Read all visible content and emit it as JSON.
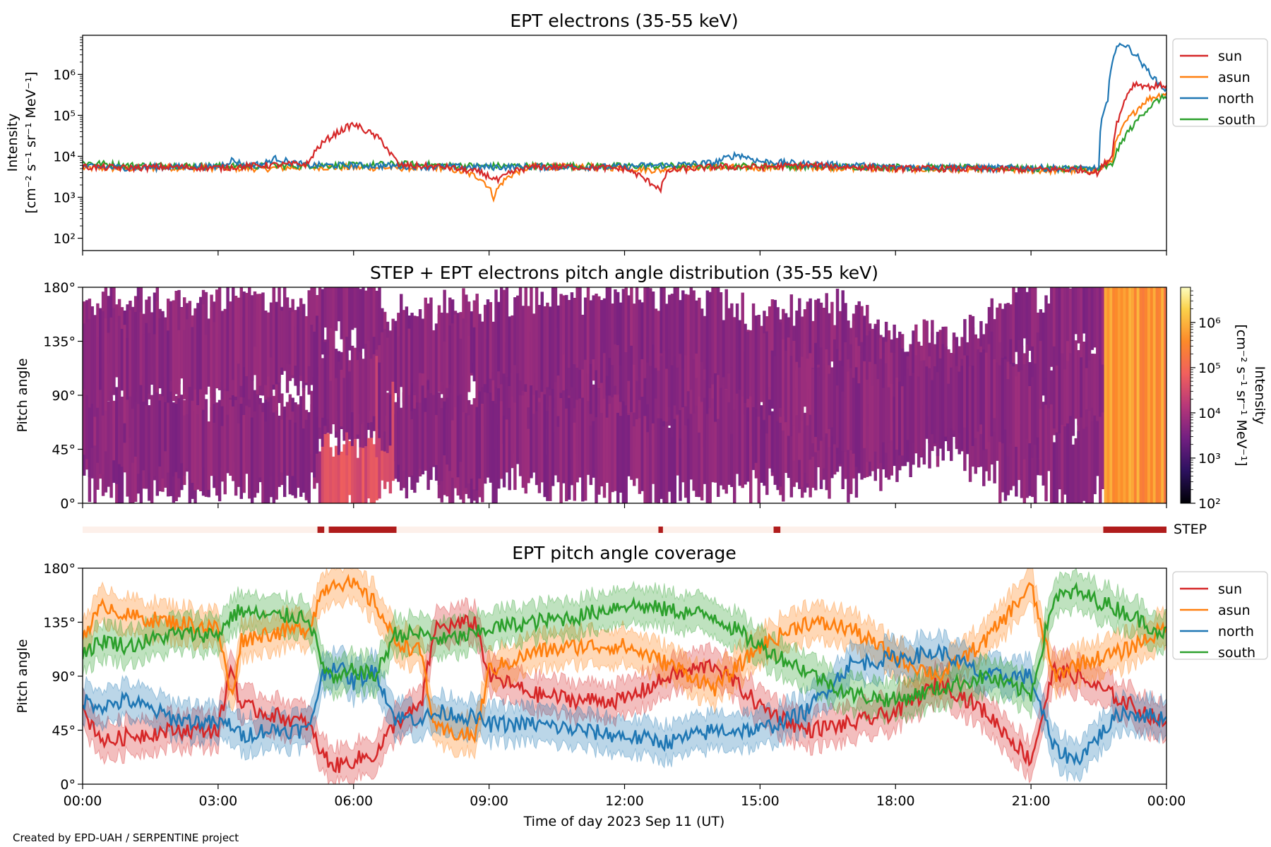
{
  "chart_data": [
    {
      "type": "line",
      "title": "EPT electrons (35-55 keV)",
      "ylabel_line1": "Intensity",
      "ylabel_line2": "[cm⁻² s⁻¹ sr⁻¹ MeV⁻¹]",
      "yscale": "log",
      "ylim": [
        50,
        9000000
      ],
      "yticks": [
        "10²",
        "10³",
        "10⁴",
        "10⁵",
        "10⁶"
      ],
      "yticks_values": [
        100,
        1000,
        10000,
        100000,
        1000000
      ],
      "xlim_hours": [
        0,
        24
      ],
      "legend_position": "outside-right",
      "legend": [
        "sun",
        "asun",
        "north",
        "south"
      ],
      "series": [
        {
          "name": "sun",
          "color": "#d62728",
          "x": [
            0,
            1,
            2,
            3,
            4,
            5,
            5.3,
            5.6,
            6.0,
            6.3,
            6.6,
            6.8,
            7,
            8,
            8.8,
            9.2,
            9.6,
            10,
            11,
            12,
            12.5,
            12.8,
            13,
            14,
            15,
            16,
            17,
            18,
            19,
            20,
            21,
            22,
            22.5,
            22.8,
            23.0,
            23.3,
            23.6,
            24
          ],
          "y": [
            5500,
            5200,
            5500,
            5200,
            6000,
            6500,
            20000,
            35000,
            60000,
            40000,
            25000,
            12000,
            6000,
            5500,
            4000,
            2500,
            4500,
            5500,
            5500,
            5000,
            2500,
            1600,
            4500,
            5500,
            5500,
            6000,
            5500,
            5000,
            5000,
            4800,
            4800,
            4800,
            4000,
            10000,
            120000,
            600000,
            500000,
            550000
          ]
        },
        {
          "name": "asun",
          "color": "#ff7f0e",
          "x": [
            0,
            1,
            2,
            3,
            4,
            5,
            6,
            7,
            8,
            8.8,
            9.1,
            9.4,
            9.8,
            10,
            11,
            12,
            12.8,
            13,
            14,
            15,
            16,
            17,
            18,
            19,
            20,
            21,
            22,
            22.5,
            22.8,
            23.0,
            23.3,
            23.6,
            24
          ],
          "y": [
            5200,
            5000,
            5300,
            5200,
            5000,
            5500,
            5300,
            5200,
            5300,
            3000,
            1000,
            3000,
            5000,
            5500,
            5500,
            5200,
            4500,
            5200,
            5500,
            5200,
            5500,
            5200,
            5000,
            4800,
            4800,
            4500,
            4500,
            4500,
            8000,
            40000,
            120000,
            250000,
            350000
          ]
        },
        {
          "name": "north",
          "color": "#1f77b4",
          "x": [
            0,
            1,
            2,
            3,
            3.3,
            3.6,
            4,
            4.3,
            4.6,
            5,
            6,
            7,
            8,
            9,
            10,
            11,
            12,
            12.5,
            13,
            14,
            14.5,
            15,
            16,
            17,
            18,
            19,
            20,
            21,
            22,
            22.5,
            22.7,
            23.0,
            23.2,
            23.5,
            23.8,
            24
          ],
          "y": [
            5500,
            5300,
            5500,
            5500,
            8000,
            6000,
            6500,
            9000,
            7000,
            6000,
            6000,
            5800,
            5500,
            5500,
            5500,
            5500,
            5500,
            6000,
            6000,
            7000,
            11000,
            7500,
            6500,
            6000,
            5500,
            5500,
            5200,
            5200,
            5000,
            5000,
            200000,
            6000000,
            4000000,
            1500000,
            600000,
            400000
          ]
        },
        {
          "name": "south",
          "color": "#2ca02c",
          "x": [
            0,
            1,
            2,
            3,
            4,
            5,
            6,
            7,
            8,
            9,
            10,
            11,
            12,
            13,
            14,
            15,
            16,
            17,
            18,
            19,
            20,
            21,
            22,
            22.5,
            22.8,
            23.0,
            23.3,
            23.6,
            24
          ],
          "y": [
            7000,
            6000,
            6000,
            5800,
            5800,
            6000,
            6000,
            6500,
            6000,
            5800,
            5800,
            5800,
            5800,
            5800,
            5800,
            5800,
            5600,
            5600,
            5500,
            5200,
            5200,
            5000,
            5000,
            4800,
            6000,
            20000,
            60000,
            150000,
            300000
          ]
        }
      ]
    },
    {
      "type": "heatmap",
      "title": "STEP + EPT electrons pitch angle distribution (35-55 keV)",
      "ylabel": "Pitch angle",
      "yticks": [
        "0°",
        "45°",
        "90°",
        "135°",
        "180°"
      ],
      "yticks_values": [
        0,
        45,
        90,
        135,
        180
      ],
      "ylim": [
        0,
        180
      ],
      "xlim_hours": [
        0,
        24
      ],
      "colorbar": {
        "label_line1": "Intensity",
        "label_line2": "[cm⁻² s⁻¹ sr⁻¹ MeV⁻¹]",
        "scale": "log",
        "range": [
          100,
          6000000
        ],
        "ticks": [
          "10²",
          "10³",
          "10⁴",
          "10⁵",
          "10⁶"
        ],
        "ticks_values": [
          100,
          1000,
          10000,
          100000,
          1000000
        ]
      },
      "typical_intensity": 5000,
      "enhanced_intervals": [
        {
          "start": 5.3,
          "end": 6.9,
          "min_angle": 0,
          "max_angle": 40,
          "intensity": 40000
        },
        {
          "start": 22.6,
          "end": 24,
          "min_angle": 0,
          "max_angle": 180,
          "intensity": 300000
        }
      ]
    },
    {
      "type": "bar",
      "label": "STEP",
      "xlim_hours": [
        0,
        24
      ],
      "active_intervals": [
        [
          5.2,
          5.35
        ],
        [
          5.45,
          6.95
        ],
        [
          12.75,
          12.85
        ],
        [
          15.3,
          15.45
        ],
        [
          22.6,
          24
        ]
      ],
      "active_color": "#b01c1c",
      "inactive_color": "#fdf0ea"
    },
    {
      "type": "line",
      "title": "EPT pitch angle coverage",
      "ylabel": "Pitch angle",
      "yticks": [
        "0°",
        "45°",
        "90°",
        "135°",
        "180°"
      ],
      "yticks_values": [
        0,
        45,
        90,
        135,
        180
      ],
      "ylim": [
        0,
        180
      ],
      "xlabel": "Time of day 2023 Sep 11 (UT)",
      "xticks": [
        "00:00",
        "03:00",
        "06:00",
        "09:00",
        "12:00",
        "15:00",
        "18:00",
        "21:00",
        "00:00"
      ],
      "xticks_hours": [
        0,
        3,
        6,
        9,
        12,
        15,
        18,
        21,
        24
      ],
      "legend_position": "outside-right",
      "legend": [
        "sun",
        "asun",
        "north",
        "south"
      ],
      "band_halfwidth_degrees": 15,
      "series": [
        {
          "name": "sun",
          "color": "#d62728",
          "x": [
            0,
            0.5,
            1,
            2,
            3,
            3.3,
            3.5,
            4,
            5,
            5.3,
            5.6,
            6,
            6.5,
            6.9,
            7.5,
            7.8,
            8.7,
            9,
            10,
            11,
            12,
            13,
            14,
            15,
            16,
            17,
            18,
            19,
            20,
            21,
            21.5,
            22,
            23,
            24
          ],
          "y": [
            60,
            35,
            40,
            45,
            45,
            100,
            65,
            60,
            50,
            25,
            15,
            20,
            25,
            50,
            65,
            130,
            135,
            90,
            75,
            70,
            70,
            90,
            100,
            65,
            45,
            50,
            60,
            85,
            60,
            20,
            95,
            90,
            70,
            50
          ]
        },
        {
          "name": "asun",
          "color": "#ff7f0e",
          "x": [
            0,
            0.5,
            1,
            2,
            3,
            3.3,
            3.5,
            4,
            5,
            5.3,
            5.6,
            6,
            6.5,
            6.9,
            7.5,
            7.8,
            8.7,
            9,
            10,
            11,
            12,
            13,
            14,
            15,
            16,
            17,
            18,
            19,
            20,
            21,
            21.5,
            22,
            23,
            24
          ],
          "y": [
            125,
            150,
            140,
            135,
            130,
            70,
            120,
            125,
            130,
            160,
            170,
            165,
            150,
            120,
            110,
            45,
            40,
            95,
            110,
            115,
            115,
            100,
            80,
            115,
            135,
            130,
            105,
            90,
            120,
            165,
            90,
            100,
            110,
            130
          ]
        },
        {
          "name": "north",
          "color": "#1f77b4",
          "x": [
            0,
            0.5,
            1,
            2,
            3,
            3.3,
            3.5,
            4,
            5,
            5.3,
            5.6,
            6,
            6.5,
            6.9,
            7.5,
            8,
            8.7,
            9,
            10,
            11,
            12,
            13,
            14,
            15,
            16,
            17,
            18,
            19,
            20,
            21,
            21.5,
            22,
            23,
            24
          ],
          "y": [
            70,
            65,
            70,
            55,
            50,
            50,
            40,
            45,
            45,
            90,
            100,
            85,
            95,
            55,
            55,
            60,
            55,
            50,
            50,
            45,
            40,
            35,
            45,
            45,
            60,
            100,
            105,
            110,
            90,
            90,
            30,
            20,
            60,
            55
          ]
        },
        {
          "name": "south",
          "color": "#2ca02c",
          "x": [
            0,
            0.5,
            1,
            2,
            3,
            3.3,
            3.5,
            4,
            5,
            5.3,
            5.6,
            6,
            6.5,
            6.9,
            7.5,
            8,
            8.7,
            9,
            10,
            11,
            12,
            13,
            14,
            15,
            16,
            17,
            18,
            19,
            20,
            21,
            21.5,
            22,
            23,
            24
          ],
          "y": [
            110,
            120,
            115,
            125,
            125,
            140,
            145,
            140,
            140,
            100,
            85,
            95,
            90,
            125,
            125,
            120,
            125,
            130,
            135,
            140,
            150,
            145,
            140,
            115,
            95,
            75,
            70,
            80,
            90,
            75,
            155,
            160,
            145,
            125
          ]
        }
      ]
    }
  ],
  "credit": "Created by EPD-UAH / SERPENTINE project"
}
